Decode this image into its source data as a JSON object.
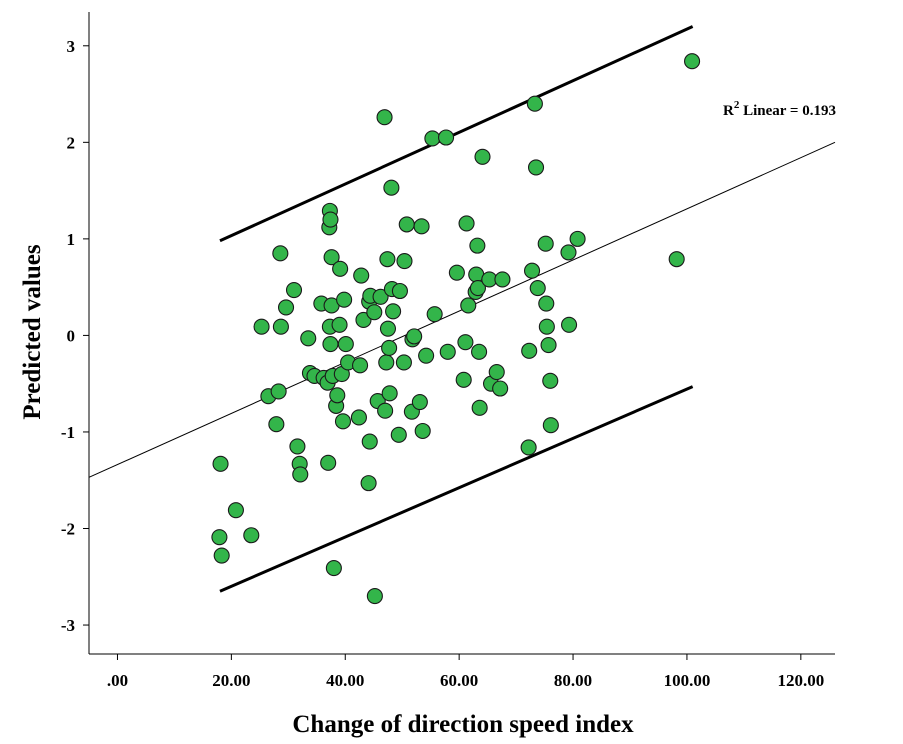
{
  "chart_data": {
    "type": "scatter",
    "title": "",
    "xlabel": "Change of direction speed index",
    "ylabel": "Predicted values",
    "xlim": [
      -5,
      126
    ],
    "ylim": [
      -3.3,
      3.35
    ],
    "xticks": [
      0,
      20,
      40,
      60,
      80,
      100,
      120
    ],
    "xtick_labels": [
      ".00",
      "20.00",
      "40.00",
      "60.00",
      "80.00",
      "100.00",
      "120.00"
    ],
    "yticks": [
      3,
      2,
      1,
      0,
      -1,
      -2,
      -3
    ],
    "ytick_labels": [
      "3",
      "2",
      "1",
      "0",
      "-1",
      "-2",
      "-3"
    ],
    "grid": false,
    "point_color": "#33b54a",
    "point_edge_color": "#1a1a1a",
    "fit_line": {
      "label_prefix": "R",
      "label_sup": "2",
      "label_suffix": " Linear = 0.193",
      "x": [
        -5,
        126
      ],
      "y": [
        -1.47,
        2.0
      ]
    },
    "prediction_band": {
      "upper": {
        "x": [
          18,
          101
        ],
        "y": [
          0.98,
          3.2
        ]
      },
      "lower": {
        "x": [
          18,
          101
        ],
        "y": [
          -2.65,
          -0.53
        ]
      }
    },
    "points": [
      [
        18.1,
        -1.33
      ],
      [
        17.9,
        -2.09
      ],
      [
        18.3,
        -2.28
      ],
      [
        20.8,
        -1.81
      ],
      [
        23.5,
        -2.07
      ],
      [
        25.3,
        0.09
      ],
      [
        26.5,
        -0.63
      ],
      [
        27.9,
        -0.92
      ],
      [
        28.3,
        -0.58
      ],
      [
        28.6,
        0.85
      ],
      [
        28.7,
        0.09
      ],
      [
        29.6,
        0.29
      ],
      [
        31.0,
        0.47
      ],
      [
        31.6,
        -1.15
      ],
      [
        32.0,
        -1.33
      ],
      [
        32.1,
        -1.44
      ],
      [
        33.5,
        -0.03
      ],
      [
        33.8,
        -0.39
      ],
      [
        34.6,
        -0.42
      ],
      [
        35.8,
        0.33
      ],
      [
        36.2,
        -0.44
      ],
      [
        36.9,
        -0.49
      ],
      [
        37.0,
        -1.32
      ],
      [
        37.2,
        1.12
      ],
      [
        37.3,
        1.29
      ],
      [
        37.4,
        1.2
      ],
      [
        37.3,
        0.09
      ],
      [
        37.4,
        -0.09
      ],
      [
        37.6,
        0.81
      ],
      [
        37.6,
        0.31
      ],
      [
        37.8,
        -0.42
      ],
      [
        38.0,
        -2.41
      ],
      [
        38.4,
        -0.73
      ],
      [
        38.6,
        -0.62
      ],
      [
        39.0,
        0.11
      ],
      [
        39.1,
        0.69
      ],
      [
        39.4,
        -0.4
      ],
      [
        39.6,
        -0.89
      ],
      [
        39.8,
        0.37
      ],
      [
        40.1,
        -0.09
      ],
      [
        40.5,
        -0.28
      ],
      [
        42.4,
        -0.85
      ],
      [
        42.6,
        -0.31
      ],
      [
        42.8,
        0.62
      ],
      [
        43.2,
        0.16
      ],
      [
        44.1,
        -1.53
      ],
      [
        44.2,
        0.35
      ],
      [
        44.3,
        -1.1
      ],
      [
        44.4,
        0.41
      ],
      [
        45.1,
        0.24
      ],
      [
        45.2,
        -2.7
      ],
      [
        45.7,
        -0.68
      ],
      [
        46.2,
        0.4
      ],
      [
        46.9,
        2.26
      ],
      [
        47.0,
        -0.78
      ],
      [
        47.2,
        -0.28
      ],
      [
        47.4,
        0.79
      ],
      [
        47.5,
        0.07
      ],
      [
        47.7,
        -0.13
      ],
      [
        47.8,
        -0.6
      ],
      [
        48.1,
        1.53
      ],
      [
        48.2,
        0.48
      ],
      [
        48.4,
        0.25
      ],
      [
        49.4,
        -1.03
      ],
      [
        49.6,
        0.46
      ],
      [
        50.3,
        -0.28
      ],
      [
        50.4,
        0.77
      ],
      [
        50.8,
        1.15
      ],
      [
        51.7,
        -0.79
      ],
      [
        51.8,
        -0.04
      ],
      [
        52.1,
        -0.01
      ],
      [
        53.1,
        -0.69
      ],
      [
        53.4,
        1.13
      ],
      [
        53.6,
        -0.99
      ],
      [
        54.2,
        -0.21
      ],
      [
        55.3,
        2.04
      ],
      [
        55.7,
        0.22
      ],
      [
        57.7,
        2.05
      ],
      [
        58.0,
        -0.17
      ],
      [
        59.6,
        0.65
      ],
      [
        60.8,
        -0.46
      ],
      [
        61.1,
        -0.07
      ],
      [
        61.3,
        1.16
      ],
      [
        61.6,
        0.31
      ],
      [
        62.9,
        0.45
      ],
      [
        63.0,
        0.63
      ],
      [
        63.2,
        0.93
      ],
      [
        63.3,
        0.49
      ],
      [
        63.5,
        -0.17
      ],
      [
        63.6,
        -0.75
      ],
      [
        64.1,
        1.85
      ],
      [
        65.3,
        0.58
      ],
      [
        65.6,
        -0.5
      ],
      [
        66.6,
        -0.38
      ],
      [
        67.2,
        -0.55
      ],
      [
        67.6,
        0.58
      ],
      [
        72.2,
        -1.16
      ],
      [
        72.3,
        -0.16
      ],
      [
        72.8,
        0.67
      ],
      [
        73.3,
        2.4
      ],
      [
        73.5,
        1.74
      ],
      [
        73.8,
        0.49
      ],
      [
        75.2,
        0.95
      ],
      [
        75.3,
        0.33
      ],
      [
        75.4,
        0.09
      ],
      [
        75.7,
        -0.1
      ],
      [
        76.0,
        -0.47
      ],
      [
        76.1,
        -0.93
      ],
      [
        79.2,
        0.86
      ],
      [
        79.3,
        0.11
      ],
      [
        80.8,
        1.0
      ],
      [
        98.2,
        0.79
      ],
      [
        100.9,
        2.84
      ]
    ]
  }
}
